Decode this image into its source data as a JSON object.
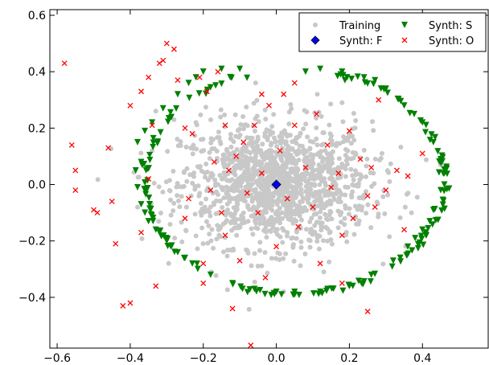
{
  "chart_data": {
    "type": "scatter",
    "xlim": [
      -0.62,
      0.58
    ],
    "ylim": [
      -0.58,
      0.62
    ],
    "x_ticks": [
      -0.6,
      -0.4,
      -0.2,
      0.0,
      0.2,
      0.4
    ],
    "x_tick_labels": [
      "−0.6",
      "−0.4",
      "−0.2",
      "0.0",
      "0.2",
      "0.4"
    ],
    "y_ticks": [
      -0.4,
      -0.2,
      0.0,
      0.2,
      0.4,
      0.6
    ],
    "y_tick_labels": [
      "−0.4",
      "−0.2",
      "0.0",
      "0.2",
      "0.4",
      "0.6"
    ],
    "grid": false,
    "legend_placement": "top-right",
    "legend": [
      "Training",
      "Synth: F",
      "Synth: S",
      "Synth: O"
    ],
    "series": [
      {
        "name": "Training",
        "marker": "circle",
        "color": "#c8c8c8",
        "distribution": {
          "center": [
            0.0,
            0.0
          ],
          "sd": [
            0.13,
            0.11
          ],
          "n": 1400
        },
        "points": [
          [
            -0.33,
            0.26
          ],
          [
            -0.28,
            0.23
          ],
          [
            0.46,
            0.06
          ],
          [
            0.45,
            0.07
          ],
          [
            0.37,
            -0.1
          ],
          [
            -0.38,
            -0.08
          ],
          [
            0.02,
            -0.38
          ],
          [
            0.13,
            -0.31
          ],
          [
            -0.22,
            0.22
          ],
          [
            0.18,
            0.29
          ]
        ]
      },
      {
        "name": "Synth: F",
        "marker": "diamond",
        "color": "#0000ff",
        "points": [
          [
            0.0,
            0.0
          ]
        ]
      },
      {
        "name": "Synth: S",
        "marker": "triangle-down",
        "color": "#008000",
        "ellipse": {
          "center": [
            0.05,
            0.01
          ],
          "rx": 0.41,
          "ry": 0.4
        },
        "points": [
          [
            -0.38,
            0.15
          ],
          [
            -0.37,
            0.08
          ],
          [
            -0.385,
            0.05
          ],
          [
            -0.38,
            -0.01
          ],
          [
            -0.37,
            -0.07
          ],
          [
            -0.35,
            -0.13
          ],
          [
            -0.32,
            -0.17
          ],
          [
            -0.3,
            -0.2
          ],
          [
            -0.27,
            -0.24
          ],
          [
            -0.23,
            -0.28
          ],
          [
            -0.18,
            -0.32
          ],
          [
            -0.12,
            -0.35
          ],
          [
            -0.06,
            -0.37
          ],
          [
            0.0,
            -0.38
          ],
          [
            0.05,
            -0.39
          ],
          [
            0.12,
            -0.38
          ],
          [
            0.2,
            -0.36
          ],
          [
            0.26,
            -0.32
          ],
          [
            0.32,
            -0.27
          ],
          [
            0.36,
            -0.22
          ],
          [
            0.4,
            -0.16
          ],
          [
            0.43,
            -0.09
          ],
          [
            0.45,
            -0.02
          ],
          [
            0.46,
            0.04
          ],
          [
            0.45,
            0.09
          ],
          [
            0.43,
            0.15
          ],
          [
            0.4,
            0.22
          ],
          [
            0.35,
            0.28
          ],
          [
            0.3,
            0.34
          ],
          [
            0.24,
            0.38
          ],
          [
            0.18,
            0.4
          ],
          [
            0.12,
            0.41
          ],
          [
            -0.2,
            0.4
          ],
          [
            -0.22,
            0.38
          ],
          [
            -0.24,
            0.36
          ],
          [
            -0.27,
            0.32
          ],
          [
            -0.31,
            0.27
          ],
          [
            -0.34,
            0.22
          ],
          [
            -0.36,
            0.19
          ],
          [
            -0.1,
            0.41
          ],
          [
            -0.15,
            0.41
          ],
          [
            0.08,
            0.4
          ],
          [
            0.38,
            -0.19
          ],
          [
            -0.33,
            -0.16
          ],
          [
            0.27,
            0.37
          ],
          [
            0.42,
            -0.13
          ],
          [
            0.46,
            0.0
          ],
          [
            -0.25,
            -0.26
          ],
          [
            0.05,
            -0.38
          ],
          [
            0.14,
            -0.37
          ]
        ]
      },
      {
        "name": "Synth: O",
        "marker": "x",
        "color": "#ff0000",
        "points": [
          [
            -0.58,
            0.43
          ],
          [
            -0.56,
            0.14
          ],
          [
            -0.55,
            0.05
          ],
          [
            -0.55,
            -0.02
          ],
          [
            -0.5,
            -0.09
          ],
          [
            -0.49,
            -0.1
          ],
          [
            -0.46,
            0.13
          ],
          [
            -0.45,
            -0.06
          ],
          [
            -0.44,
            -0.21
          ],
          [
            -0.42,
            -0.43
          ],
          [
            -0.4,
            -0.42
          ],
          [
            -0.4,
            0.28
          ],
          [
            -0.37,
            0.33
          ],
          [
            -0.37,
            -0.17
          ],
          [
            -0.35,
            0.02
          ],
          [
            -0.34,
            0.21
          ],
          [
            -0.33,
            -0.36
          ],
          [
            -0.32,
            0.43
          ],
          [
            -0.31,
            0.44
          ],
          [
            -0.3,
            0.5
          ],
          [
            -0.28,
            0.48
          ],
          [
            -0.27,
            0.37
          ],
          [
            -0.25,
            0.2
          ],
          [
            -0.25,
            -0.12
          ],
          [
            -0.24,
            -0.05
          ],
          [
            -0.23,
            0.18
          ],
          [
            -0.21,
            0.38
          ],
          [
            -0.2,
            -0.28
          ],
          [
            -0.19,
            0.33
          ],
          [
            -0.18,
            -0.02
          ],
          [
            -0.17,
            0.08
          ],
          [
            -0.16,
            0.4
          ],
          [
            -0.15,
            -0.1
          ],
          [
            -0.14,
            -0.18
          ],
          [
            -0.13,
            0.05
          ],
          [
            -0.12,
            -0.44
          ],
          [
            -0.11,
            0.1
          ],
          [
            -0.1,
            -0.27
          ],
          [
            -0.09,
            0.15
          ],
          [
            -0.08,
            -0.03
          ],
          [
            -0.07,
            -0.57
          ],
          [
            -0.06,
            0.21
          ],
          [
            -0.05,
            -0.1
          ],
          [
            -0.04,
            0.04
          ],
          [
            -0.03,
            -0.33
          ],
          [
            -0.02,
            0.28
          ],
          [
            0.0,
            -0.22
          ],
          [
            0.01,
            0.12
          ],
          [
            0.02,
            0.32
          ],
          [
            0.03,
            -0.05
          ],
          [
            0.05,
            0.21
          ],
          [
            0.06,
            -0.15
          ],
          [
            0.08,
            0.06
          ],
          [
            0.1,
            -0.08
          ],
          [
            0.11,
            0.25
          ],
          [
            0.12,
            -0.28
          ],
          [
            0.14,
            0.14
          ],
          [
            0.15,
            -0.01
          ],
          [
            0.17,
            0.04
          ],
          [
            0.18,
            -0.18
          ],
          [
            0.2,
            0.19
          ],
          [
            0.21,
            -0.12
          ],
          [
            0.23,
            0.09
          ],
          [
            0.25,
            -0.04
          ],
          [
            0.26,
            0.06
          ],
          [
            0.27,
            -0.08
          ],
          [
            0.28,
            0.3
          ],
          [
            0.3,
            -0.02
          ],
          [
            0.33,
            0.05
          ],
          [
            0.35,
            -0.16
          ],
          [
            0.36,
            0.03
          ],
          [
            0.4,
            0.11
          ],
          [
            0.25,
            -0.45
          ],
          [
            0.18,
            -0.35
          ],
          [
            -0.14,
            0.21
          ],
          [
            -0.2,
            -0.35
          ],
          [
            -0.04,
            0.32
          ],
          [
            0.05,
            0.36
          ],
          [
            -0.35,
            0.38
          ]
        ]
      }
    ]
  }
}
